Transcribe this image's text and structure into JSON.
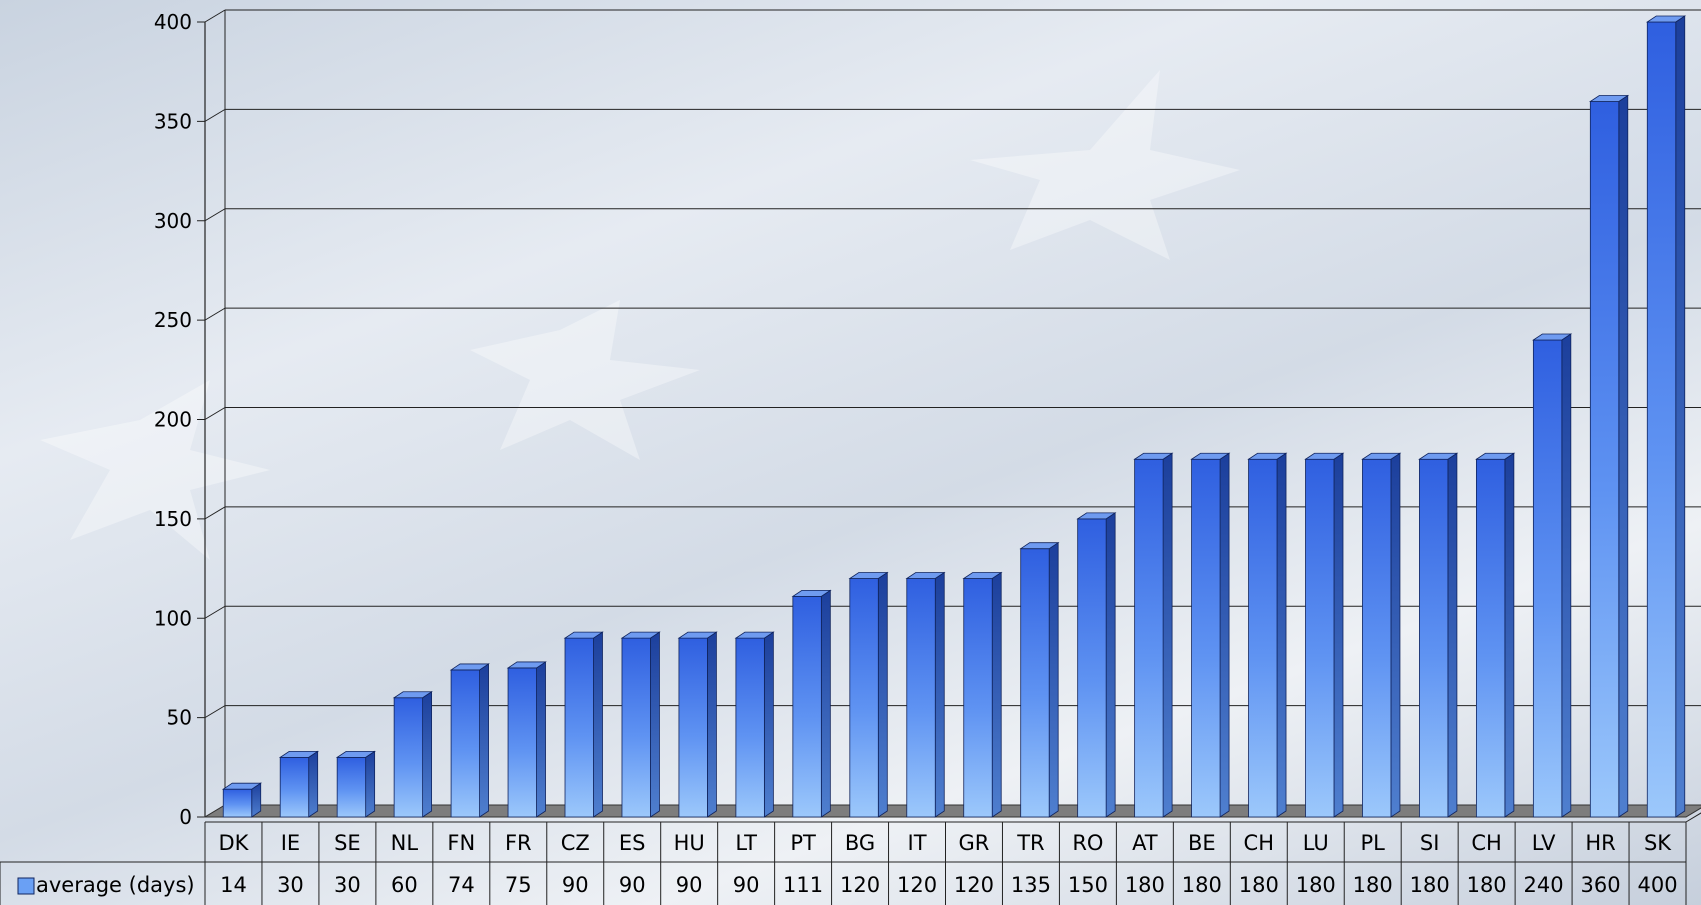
{
  "chart_data": {
    "type": "bar",
    "categories": [
      "DK",
      "IE",
      "SE",
      "NL",
      "FN",
      "FR",
      "CZ",
      "ES",
      "HU",
      "LT",
      "PT",
      "BG",
      "IT",
      "GR",
      "TR",
      "RO",
      "AT",
      "BE",
      "CH",
      "LU",
      "PL",
      "SI",
      "CH",
      "LV",
      "HR",
      "SK"
    ],
    "series": [
      {
        "name": "average (days)",
        "values": [
          14,
          30,
          30,
          60,
          74,
          75,
          90,
          90,
          90,
          90,
          111,
          120,
          120,
          120,
          135,
          150,
          180,
          180,
          180,
          180,
          180,
          180,
          180,
          240,
          360,
          400
        ],
        "color": "#4a7df0"
      }
    ],
    "title": "",
    "xlabel": "",
    "ylabel": "",
    "ylim": [
      0,
      400
    ],
    "yticks": [
      0,
      50,
      100,
      150,
      200,
      250,
      300,
      350,
      400
    ],
    "grid": true,
    "legend": "data-table-left",
    "bar_style": "3d"
  }
}
